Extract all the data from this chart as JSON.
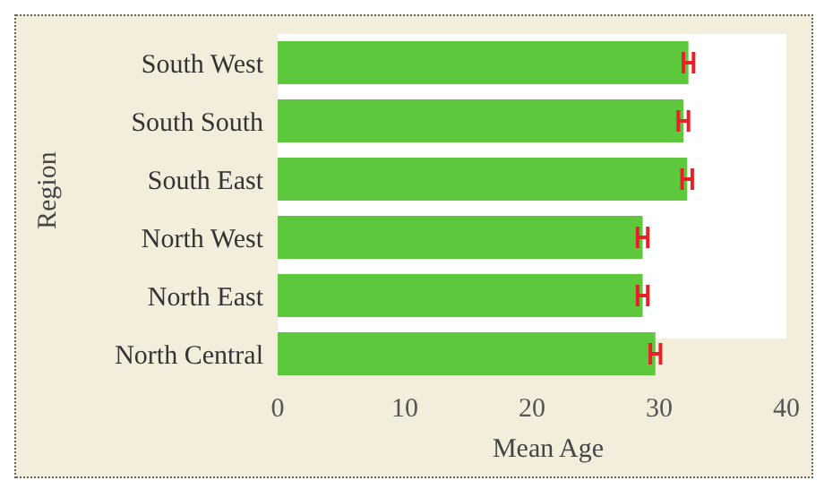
{
  "chart_data": {
    "type": "bar",
    "orientation": "horizontal",
    "categories": [
      "South West",
      "South South",
      "South East",
      "North West",
      "North East",
      "North Central"
    ],
    "values": [
      32.3,
      31.9,
      32.2,
      28.7,
      28.7,
      29.7
    ],
    "errors": [
      0.4,
      0.4,
      0.4,
      0.4,
      0.4,
      0.4
    ],
    "color": "#5dc83c",
    "xlabel": "Mean Age",
    "ylabel": "Region",
    "xlim": [
      0,
      40
    ],
    "xticks": [
      0,
      10,
      20,
      30,
      40
    ],
    "grid": false,
    "legend": false
  }
}
